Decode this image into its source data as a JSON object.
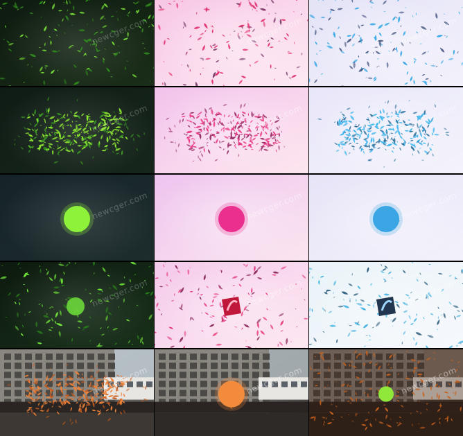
{
  "watermark": "newcger.com",
  "rows": [
    {
      "stage": "burst",
      "tiles": [
        {
          "theme": "green-dark",
          "bg": [
            "#0e1a10",
            "#1a2e18"
          ],
          "particle": "#7be63a",
          "particle_alt": "#2f8f1e"
        },
        {
          "theme": "pink-light",
          "bg": [
            "#f7c6e4",
            "#fde9f3"
          ],
          "particle": "#e0306f",
          "particle_alt": "#7a3d6a"
        },
        {
          "theme": "blue-light",
          "bg": [
            "#e4e3f7",
            "#f3f1fb"
          ],
          "particle": "#3aa9e6",
          "particle_alt": "#3f4f7a"
        }
      ]
    },
    {
      "stage": "cluster",
      "tiles": [
        {
          "theme": "green-dark",
          "bg": [
            "#0f1c15",
            "#17261c"
          ],
          "particle": "#8fea32",
          "particle_alt": "#3c9e22"
        },
        {
          "theme": "pink-light",
          "bg": [
            "#f2c2ec",
            "#fde6ee"
          ],
          "particle": "#ea3a84",
          "particle_alt": "#9a2e68"
        },
        {
          "theme": "blue-light",
          "bg": [
            "#e8e6f9",
            "#f4f3fb"
          ],
          "particle": "#3fb6ec",
          "particle_alt": "#2c6f9a"
        }
      ]
    },
    {
      "stage": "sphere",
      "tiles": [
        {
          "theme": "green-dark",
          "bg": [
            "#16242a",
            "#1d2c2c"
          ],
          "particle": "#8ff23a",
          "particle_alt": "#4fb81e"
        },
        {
          "theme": "pink-light",
          "bg": [
            "#eec4ef",
            "#fbe5ef"
          ],
          "particle": "#ea2f8e",
          "particle_alt": "#a71f5e"
        },
        {
          "theme": "blue-light",
          "bg": [
            "#e7e4f7",
            "#f3f1fb"
          ],
          "particle": "#3aa6e3",
          "particle_alt": "#1f6a9a"
        }
      ]
    },
    {
      "stage": "logo-reveal",
      "tiles": [
        {
          "theme": "green-dark",
          "bg": [
            "#0d1a0f",
            "#18301a"
          ],
          "particle": "#6fe03a",
          "particle_alt": "#2a7d1c"
        },
        {
          "theme": "pink-light",
          "bg": [
            "#f4c9ea",
            "#fde8f1"
          ],
          "particle": "#e63a7c",
          "particle_alt": "#8a2b5c"
        },
        {
          "theme": "blue-light",
          "bg": [
            "#e9f3f8",
            "#f6f8fc"
          ],
          "particle": "#45b2e0",
          "particle_alt": "#2a5b7a"
        }
      ]
    },
    {
      "stage": "city-scene",
      "tiles": [
        {
          "theme": "city-orange-burst",
          "bg": [
            "#b7c2c8",
            "#3d3833"
          ],
          "particle": "#f0843a",
          "particle_alt": "#c25a1e"
        },
        {
          "theme": "city-orange-sphere",
          "bg": [
            "#a5adb0",
            "#2e2a27"
          ],
          "particle": "#f28c3c",
          "particle_alt": "#d06a22"
        },
        {
          "theme": "city-green-logo",
          "bg": [
            "#8b7f76",
            "#2a2420"
          ],
          "particle": "#c8621e",
          "particle_alt": "#8fe83a"
        }
      ]
    }
  ]
}
